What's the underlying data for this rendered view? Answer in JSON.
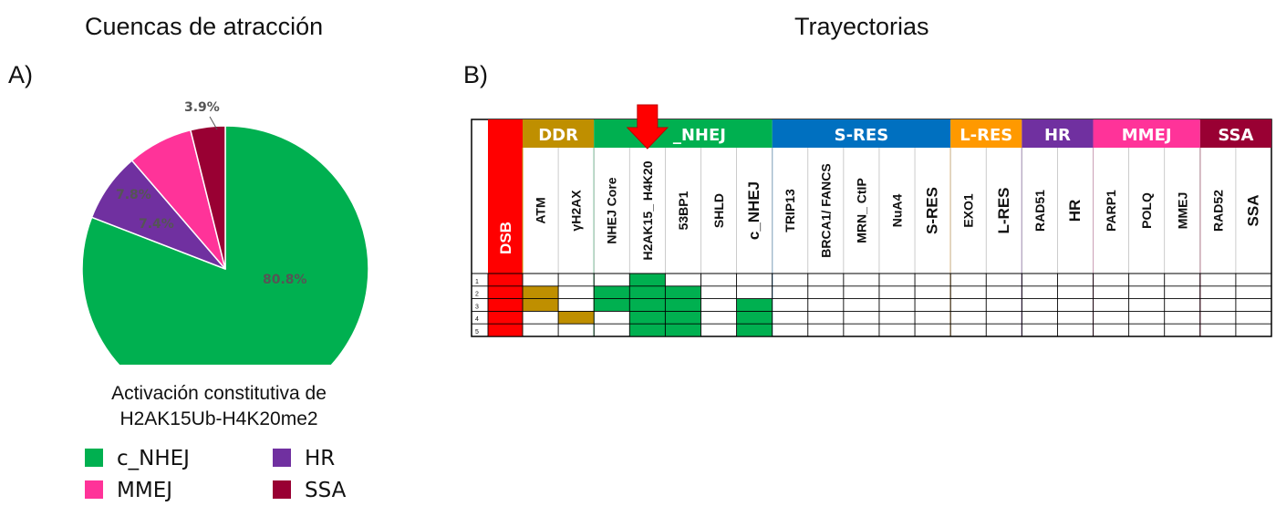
{
  "headings": {
    "left": "Cuencas de atracción",
    "right": "Trayectorias"
  },
  "panel_labels": {
    "a": "A)",
    "b": "B)"
  },
  "subtitle_line1": "Activación constitutiva de",
  "subtitle_line2": "H2AK15Ub-H4K20me2",
  "chart_data": [
    {
      "type": "pie",
      "title": "",
      "slices": [
        {
          "label": "c_NHEJ",
          "value": 80.8,
          "text": "80.8%",
          "color": "#00b050"
        },
        {
          "label": "HR",
          "value": 7.8,
          "text": "7.8%",
          "color": "#7030a0"
        },
        {
          "label": "MMEJ",
          "value": 7.4,
          "text": "7.4%",
          "color": "#ff3399"
        },
        {
          "label": "SSA",
          "value": 3.9,
          "text": "3.9%",
          "color": "#990033"
        }
      ],
      "legend": [
        {
          "label": "c_NHEJ",
          "color": "#00b050"
        },
        {
          "label": "HR",
          "color": "#7030a0"
        },
        {
          "label": "MMEJ",
          "color": "#ff3399"
        },
        {
          "label": "SSA",
          "color": "#990033"
        }
      ],
      "legend_position": "bottom"
    },
    {
      "type": "table",
      "title": "",
      "groups": [
        {
          "label": "DDR",
          "color": "#bf8f00",
          "span": 2
        },
        {
          "label": "_NHEJ",
          "color": "#00b050",
          "span": 5
        },
        {
          "label": "S-RES",
          "color": "#0070c0",
          "span": 5
        },
        {
          "label": "L-RES",
          "color": "#ff9900",
          "span": 2
        },
        {
          "label": "HR",
          "color": "#7030a0",
          "span": 2
        },
        {
          "label": "MMEJ",
          "color": "#ff3399",
          "span": 3
        },
        {
          "label": "SSA",
          "color": "#990033",
          "span": 2
        }
      ],
      "first_column": {
        "label": "DSB",
        "color": "#ff0000"
      },
      "columns": [
        "ATM",
        "γH2AX",
        "NHEJ Core",
        "H2AK15_ H4K20",
        "53BP1",
        "SHLD",
        "c_NHEJ",
        "TRIP13",
        "BRCA1/ FANCS",
        "MRN_ CtIP",
        "NuA4",
        "S-RES",
        "EXO1",
        "L-RES",
        "RAD51",
        "HR",
        "PARP1",
        "POLQ",
        "MMEJ",
        "RAD52",
        "SSA"
      ],
      "row_labels": [
        "1",
        "2",
        "3",
        "4",
        "5"
      ],
      "active_cells": {
        "1": [
          "H2AK15_ H4K20"
        ],
        "2": [
          "ATM",
          "NHEJ Core",
          "H2AK15_ H4K20",
          "53BP1"
        ],
        "3": [
          "ATM",
          "NHEJ Core",
          "H2AK15_ H4K20",
          "53BP1",
          "c_NHEJ"
        ],
        "4": [
          "γH2AX",
          "H2AK15_ H4K20",
          "53BP1",
          "c_NHEJ"
        ],
        "5": [
          "H2AK15_ H4K20",
          "53BP1",
          "c_NHEJ"
        ]
      },
      "highlighted_column": "H2AK15_ H4K20",
      "marker_color": "#ff0000"
    }
  ]
}
